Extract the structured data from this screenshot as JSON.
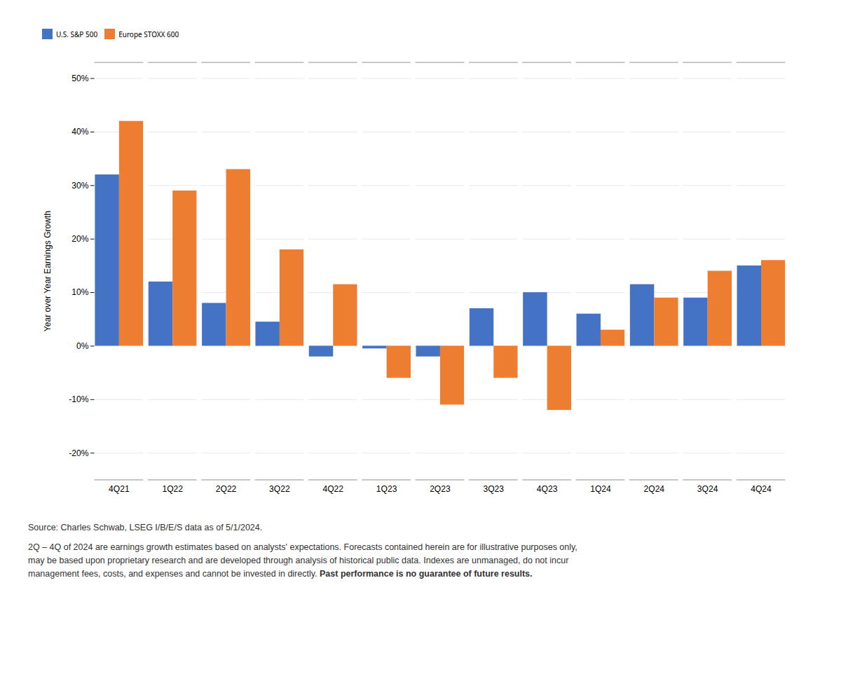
{
  "chart_data": {
    "type": "bar",
    "categories": [
      "4Q21",
      "1Q22",
      "2Q22",
      "3Q22",
      "4Q22",
      "1Q23",
      "2Q23",
      "3Q23",
      "4Q23",
      "1Q24",
      "2Q24",
      "3Q24",
      "4Q24"
    ],
    "series": [
      {
        "name": "U.S. S&P 500",
        "color": "#4472C4",
        "values": [
          32,
          12,
          8,
          4.5,
          -2,
          -0.5,
          -2,
          7,
          10,
          6,
          11.5,
          9,
          15
        ]
      },
      {
        "name": "Europe STOXX 600",
        "color": "#ED7D31",
        "values": [
          42,
          29,
          33,
          18,
          11.5,
          -6,
          -11,
          -6,
          -12,
          3,
          9,
          14,
          16
        ]
      }
    ],
    "ylabel": "Year over Year Earnings Growth",
    "ylim": [
      -25,
      53
    ],
    "yticks": [
      {
        "value": -20,
        "label": "-20%"
      },
      {
        "value": -10,
        "label": "-10%"
      },
      {
        "value": 0,
        "label": "0%"
      },
      {
        "value": 10,
        "label": "10%"
      },
      {
        "value": 20,
        "label": "20%"
      },
      {
        "value": 30,
        "label": "30%"
      },
      {
        "value": 40,
        "label": "40%"
      },
      {
        "value": 50,
        "label": "50%"
      }
    ],
    "grid": true,
    "legend": "upper left",
    "annotations": [
      "Source: Charles Schwab, LSEG I/B/E/S data as of 5/1/2024.",
      "2Q – 4Q of 2024 are earnings growth estimates based on analysts' expectations. Forecasts contained herein are for illustrative purposes only,",
      "may be based upon proprietary research and are developed through analysis of historical public data. Indexes are unmanaged, do not incur",
      "management fees, costs, and expenses and cannot be invested in directly. ",
      "Past performance is no guarantee of future results."
    ]
  }
}
